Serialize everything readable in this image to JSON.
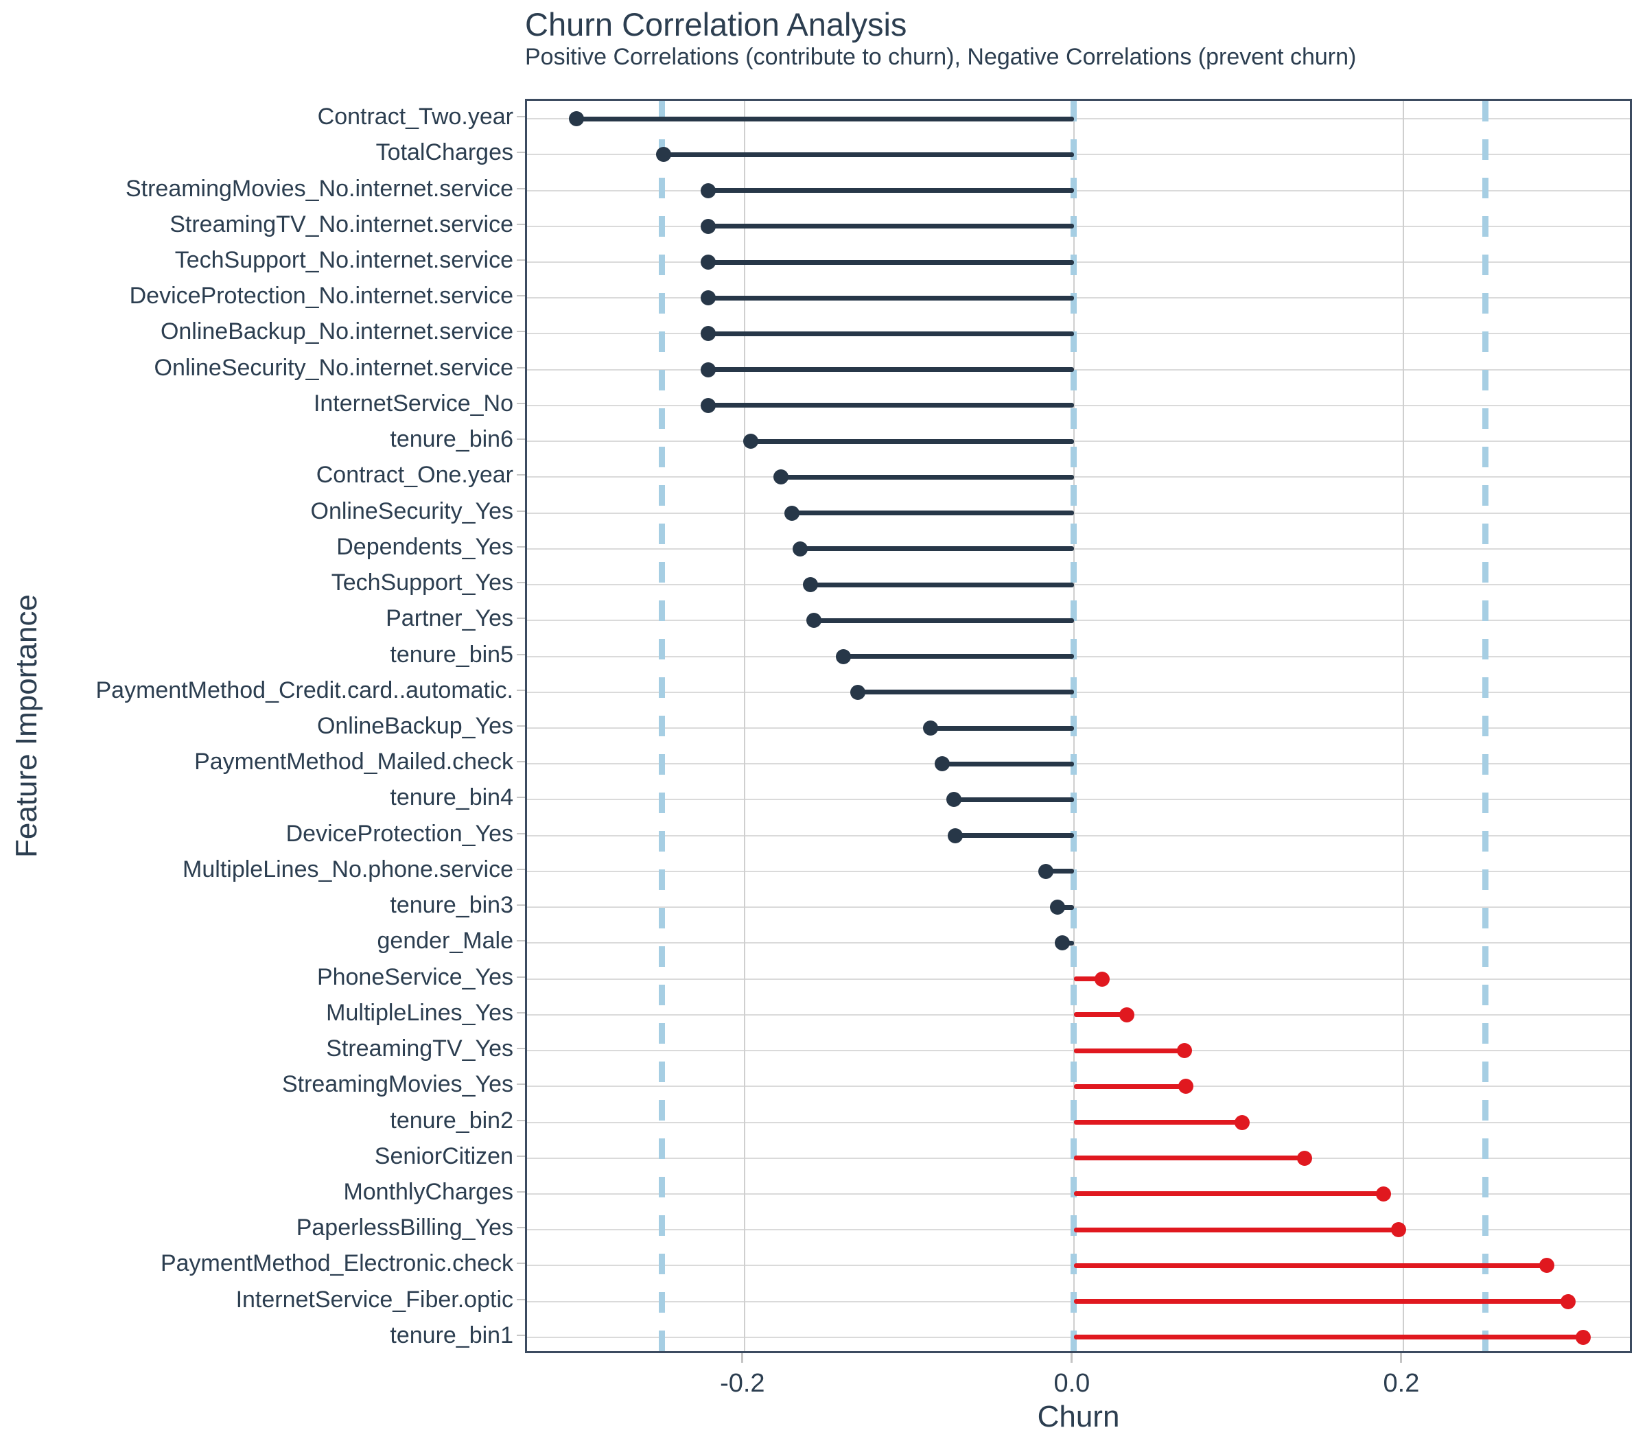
{
  "title": "Churn Correlation Analysis",
  "subtitle": "Positive Correlations (contribute to churn), Negative Correlations (prevent churn)",
  "colors": {
    "negative": "#273748",
    "positive": "#e0181f",
    "threshold_dash": "#a6cee3",
    "h_gridline": "#dadada",
    "v_gridline": "#cfcfcf",
    "panel_border": "#3c4b60",
    "text": "#2c3e50"
  },
  "chart_data": {
    "type": "lollipop",
    "orientation": "horizontal",
    "title": "Churn Correlation Analysis",
    "subtitle": "Positive Correlations (contribute to churn), Negative Correlations (prevent churn)",
    "xlabel": "Churn",
    "ylabel": "Feature Importance",
    "xlim": [
      -0.332,
      0.34
    ],
    "grid": true,
    "threshold_lines": [
      -0.25,
      0.0,
      0.25
    ],
    "x_ticks": [
      {
        "label": "-0.2",
        "value": -0.2
      },
      {
        "label": "0.0",
        "value": 0.0
      },
      {
        "label": "0.2",
        "value": 0.2
      }
    ],
    "features": [
      {
        "label": "Contract_Two.year",
        "value": -0.302
      },
      {
        "label": "TotalCharges",
        "value": -0.249
      },
      {
        "label": "StreamingMovies_No.internet.service",
        "value": -0.222
      },
      {
        "label": "StreamingTV_No.internet.service",
        "value": -0.222
      },
      {
        "label": "TechSupport_No.internet.service",
        "value": -0.222
      },
      {
        "label": "DeviceProtection_No.internet.service",
        "value": -0.222
      },
      {
        "label": "OnlineBackup_No.internet.service",
        "value": -0.222
      },
      {
        "label": "OnlineSecurity_No.internet.service",
        "value": -0.222
      },
      {
        "label": "InternetService_No",
        "value": -0.222
      },
      {
        "label": "tenure_bin6",
        "value": -0.196
      },
      {
        "label": "Contract_One.year",
        "value": -0.178
      },
      {
        "label": "OnlineSecurity_Yes",
        "value": -0.171
      },
      {
        "label": "Dependents_Yes",
        "value": -0.166
      },
      {
        "label": "TechSupport_Yes",
        "value": -0.16
      },
      {
        "label": "Partner_Yes",
        "value": -0.158
      },
      {
        "label": "tenure_bin5",
        "value": -0.14
      },
      {
        "label": "PaymentMethod_Credit.card..automatic.",
        "value": -0.131
      },
      {
        "label": "OnlineBackup_Yes",
        "value": -0.087
      },
      {
        "label": "PaymentMethod_Mailed.check",
        "value": -0.08
      },
      {
        "label": "tenure_bin4",
        "value": -0.073
      },
      {
        "label": "DeviceProtection_Yes",
        "value": -0.072
      },
      {
        "label": "MultipleLines_No.phone.service",
        "value": -0.017
      },
      {
        "label": "tenure_bin3",
        "value": -0.01
      },
      {
        "label": "gender_Male",
        "value": -0.007
      },
      {
        "label": "PhoneService_Yes",
        "value": 0.017
      },
      {
        "label": "MultipleLines_Yes",
        "value": 0.032
      },
      {
        "label": "StreamingTV_Yes",
        "value": 0.067
      },
      {
        "label": "StreamingMovies_Yes",
        "value": 0.068
      },
      {
        "label": "tenure_bin2",
        "value": 0.102
      },
      {
        "label": "SeniorCitizen",
        "value": 0.14
      },
      {
        "label": "MonthlyCharges",
        "value": 0.188
      },
      {
        "label": "PaperlessBilling_Yes",
        "value": 0.197
      },
      {
        "label": "PaymentMethod_Electronic.check",
        "value": 0.287
      },
      {
        "label": "InternetService_Fiber.optic",
        "value": 0.3
      },
      {
        "label": "tenure_bin1",
        "value": 0.309
      }
    ]
  }
}
